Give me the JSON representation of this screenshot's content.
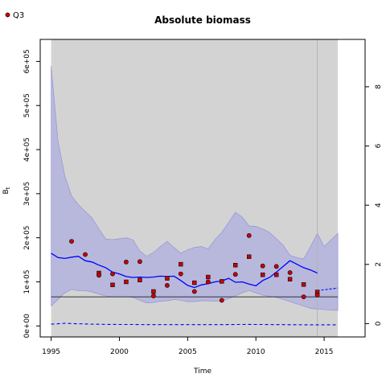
{
  "chart_data": {
    "type": "line",
    "title": "Absolute biomass",
    "xlabel": "Time",
    "ylabel": "B",
    "ylabel_sub": "t",
    "xlim": [
      1994.2,
      2018.0
    ],
    "ylim": [
      -25000,
      650000
    ],
    "ylim_right": [
      -0.45,
      9.6
    ],
    "x_ticks": [
      1995,
      2000,
      2005,
      2010,
      2015
    ],
    "x_tick_labels": [
      "1995",
      "2000",
      "2005",
      "2010",
      "2015"
    ],
    "y_ticks": [
      0,
      100000,
      200000,
      300000,
      400000,
      500000,
      600000
    ],
    "y_tick_labels": [
      "0e+00",
      "1e+05",
      "2e+05",
      "3e+05",
      "4e+05",
      "5e+05",
      "6e+05"
    ],
    "y_right_ticks": [
      0,
      2,
      4,
      6,
      8
    ],
    "y_right_tick_labels": [
      "0",
      "2",
      "4",
      "6",
      "8"
    ],
    "grey_band_x": [
      1995,
      2016
    ],
    "vertical_line_x": 2014.5,
    "reference_line_y": 66000,
    "legend": {
      "placement": "top-left",
      "label": "Q3"
    },
    "colors": {
      "band": "#d3d3d3",
      "ci": "#b3b3dd",
      "ci_edge": "#8c8cd9",
      "main": "#0000ff",
      "points": "#cc0000",
      "legend_point": "#cc0000"
    },
    "series": [
      {
        "role": "biomass",
        "x": [
          1995,
          1995.5,
          1996,
          1996.5,
          1997,
          1997.5,
          1998,
          1998.5,
          1999,
          1999.5,
          2000,
          2000.5,
          2001,
          2001.5,
          2002,
          2002.5,
          2003,
          2003.5,
          2004,
          2004.5,
          2005,
          2005.5,
          2006,
          2006.5,
          2007,
          2007.5,
          2008,
          2008.5,
          2009,
          2009.5,
          2010,
          2010.5,
          2011,
          2011.5,
          2012,
          2012.5,
          2013,
          2013.5,
          2014,
          2014.5
        ],
        "values": [
          165000,
          155000,
          153000,
          156000,
          158000,
          148000,
          145000,
          138000,
          132000,
          122000,
          118000,
          112000,
          110000,
          111000,
          110000,
          111000,
          113000,
          112000,
          113000,
          103000,
          92000,
          87000,
          93000,
          96000,
          100000,
          102000,
          108000,
          99000,
          100000,
          95000,
          91000,
          103000,
          110000,
          122000,
          135000,
          148000,
          140000,
          132000,
          127000,
          120000
        ]
      },
      {
        "role": "ci_upper",
        "values": [
          590000,
          420000,
          340000,
          295000,
          275000,
          260000,
          245000,
          220000,
          197000,
          196000,
          198000,
          200000,
          195000,
          170000,
          158000,
          167000,
          180000,
          192000,
          178000,
          165000,
          173000,
          178000,
          180000,
          175000,
          196000,
          212000,
          235000,
          258000,
          247000,
          227000,
          226000,
          220000,
          212000,
          198000,
          183000,
          160000,
          155000,
          152000,
          180000,
          210000
        ]
      },
      {
        "role": "ci_lower",
        "values": [
          45000,
          60000,
          75000,
          83000,
          80000,
          80000,
          77000,
          72000,
          68000,
          66000,
          66000,
          66000,
          65000,
          58000,
          52000,
          53000,
          56000,
          57000,
          60000,
          58000,
          55000,
          55000,
          57000,
          57000,
          56000,
          57000,
          62000,
          68000,
          75000,
          80000,
          75000,
          70000,
          67000,
          65000,
          60000,
          55000,
          50000,
          45000,
          40000,
          38000
        ]
      },
      {
        "role": "dashed_low",
        "values": [
          4000,
          5000,
          6000,
          5500,
          5000,
          4500,
          4000,
          3800,
          3500,
          3400,
          3300,
          3200,
          3200,
          3100,
          3000,
          3000,
          3000,
          3000,
          3000,
          3000,
          3000,
          3000,
          3000,
          3000,
          3000,
          3000,
          3100,
          3200,
          3300,
          3400,
          3300,
          3200,
          3100,
          3000,
          2900,
          2800,
          2700,
          2600,
          2500,
          2500
        ]
      }
    ],
    "forecast": {
      "x": [
        2014.5,
        2015,
        2015.5,
        2016
      ],
      "values": [
        80000,
        82000,
        84000,
        86000
      ]
    },
    "observations": {
      "name": "Q3",
      "circles": [
        [
          1996.5,
          192000
        ],
        [
          1997.5,
          162000
        ],
        [
          1998.5,
          115000
        ],
        [
          1999.5,
          118000
        ],
        [
          2000.5,
          145000
        ],
        [
          2001.5,
          146000
        ],
        [
          2002.5,
          68000
        ],
        [
          2003.5,
          92000
        ],
        [
          2004.5,
          118000
        ],
        [
          2005.5,
          78000
        ],
        [
          2006.5,
          100000
        ],
        [
          2007.5,
          58000
        ],
        [
          2008.5,
          117000
        ],
        [
          2009.5,
          205000
        ],
        [
          2010.5,
          136000
        ],
        [
          2011.5,
          135000
        ],
        [
          2012.5,
          121000
        ],
        [
          2013.5,
          66000
        ],
        [
          2014.5,
          70000
        ]
      ],
      "squares": [
        [
          1998.5,
          120000
        ],
        [
          1999.5,
          93000
        ],
        [
          2000.5,
          100000
        ],
        [
          2001.5,
          104000
        ],
        [
          2002.5,
          78000
        ],
        [
          2003.5,
          108000
        ],
        [
          2004.5,
          140000
        ],
        [
          2005.5,
          98000
        ],
        [
          2006.5,
          111000
        ],
        [
          2007.5,
          101000
        ],
        [
          2008.5,
          138000
        ],
        [
          2009.5,
          157000
        ],
        [
          2010.5,
          116000
        ],
        [
          2011.5,
          116000
        ],
        [
          2012.5,
          106000
        ],
        [
          2013.5,
          94000
        ],
        [
          2014.5,
          77000
        ]
      ]
    }
  }
}
